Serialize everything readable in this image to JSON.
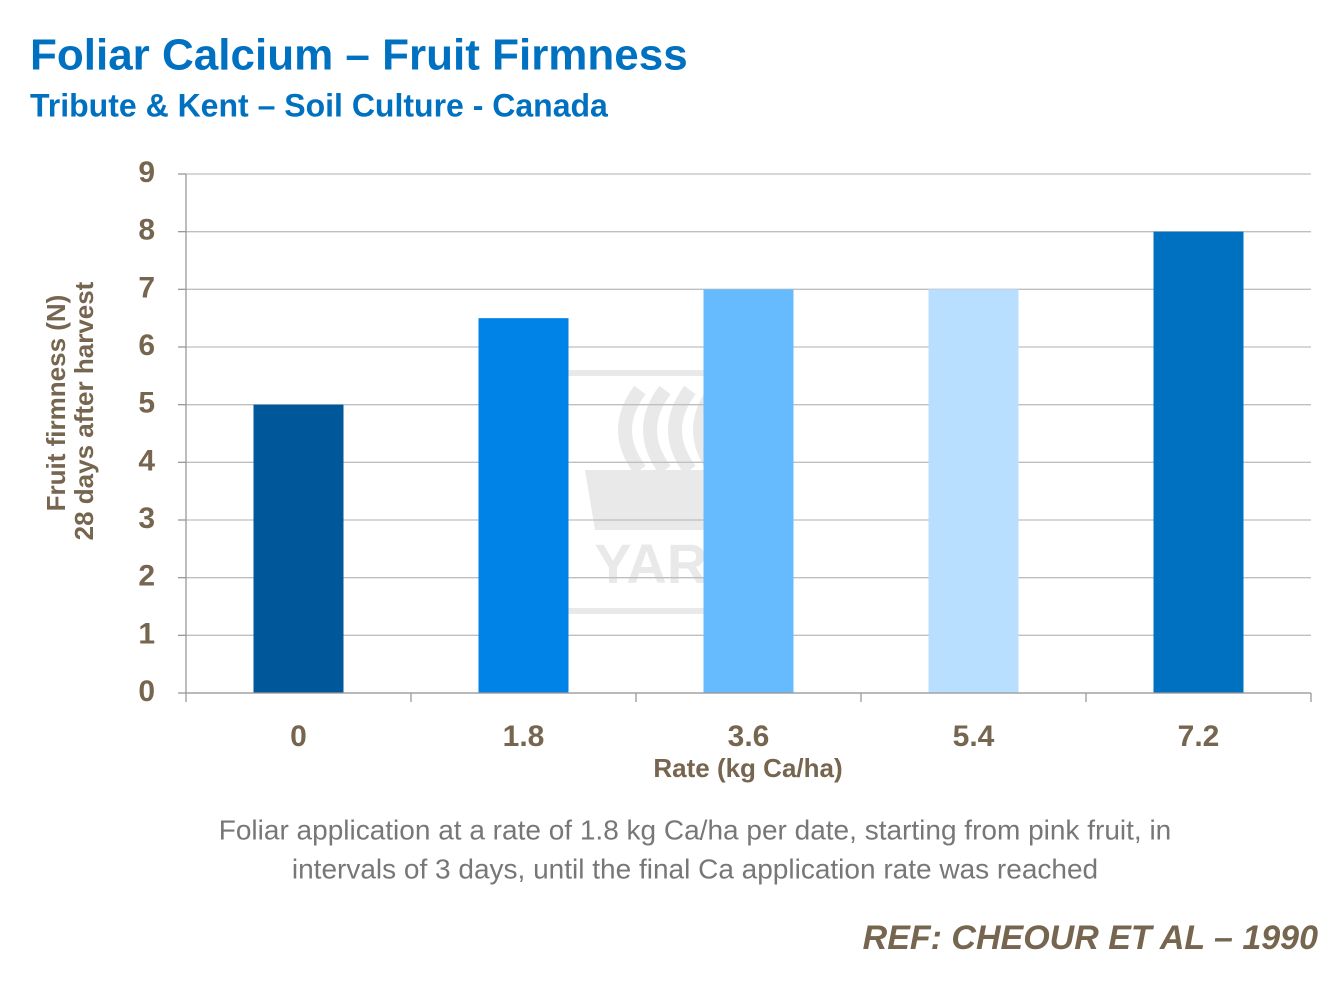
{
  "chart_data": {
    "type": "bar",
    "title": "Foliar Calcium – Fruit Firmness",
    "subtitle": "Tribute & Kent – Soil Culture - Canada",
    "ylabel": [
      "Fruit firmness (N)",
      "28 days after harvest"
    ],
    "xlabel": "Rate (kg Ca/ha)",
    "categories": [
      "0",
      "1.8",
      "3.6",
      "5.4",
      "7.2"
    ],
    "values": [
      5,
      6.5,
      7,
      7,
      8
    ],
    "colors": [
      "#00579a",
      "#0083e6",
      "#66bbff",
      "#b8dfff",
      "#0070c0"
    ],
    "ylim": [
      0,
      9
    ],
    "yticks": [
      0,
      1,
      2,
      3,
      4,
      5,
      6,
      7,
      8,
      9
    ],
    "grid": true,
    "note": [
      "Foliar application at a rate of 1.8 kg Ca/ha per date, starting from pink fruit, in",
      "intervals of 3 days, until the final Ca application rate was reached"
    ],
    "reference": "REF: CHEOUR ET AL – 1990",
    "watermark": "YARA"
  }
}
